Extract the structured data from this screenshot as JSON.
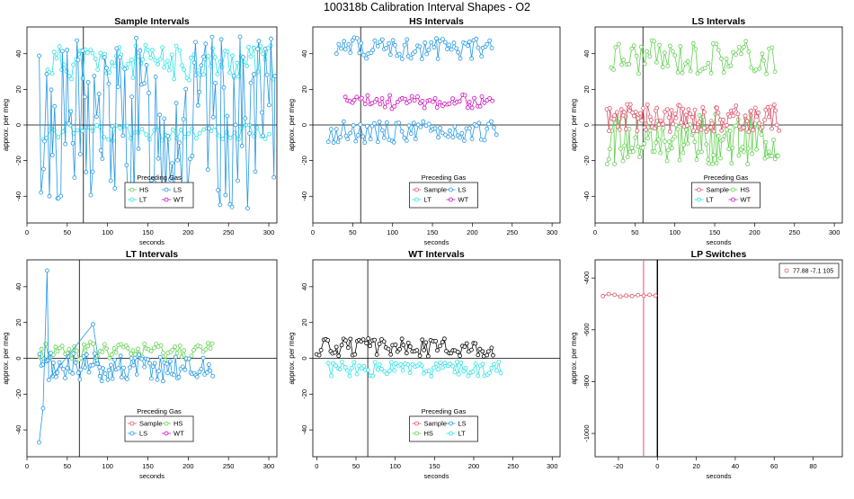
{
  "title": "100318b   Calibration Interval Shapes - O2",
  "colors": {
    "Sample": "#df536b",
    "HS": "#61d04f",
    "LS": "#2297e6",
    "LT": "#28e2e5",
    "WT": "#cd0bbc",
    "Black": "#000000"
  },
  "chart_data": [
    {
      "type": "scatter",
      "title": "Sample Intervals",
      "xlabel": "seconds",
      "ylabel": "approx. per meg",
      "xlim": [
        0,
        310
      ],
      "ylim": [
        -55,
        55
      ],
      "xticks": [
        0,
        50,
        100,
        150,
        200,
        250,
        300
      ],
      "yticks": [
        -40,
        -20,
        0,
        20,
        40
      ],
      "vline": 70,
      "hline": 0,
      "legend": {
        "title": "Preceding Gas",
        "position": "bottom-center",
        "entries": [
          "HS",
          "LS",
          "LT",
          "WT"
        ],
        "entry_colors": [
          "HS",
          "LS",
          "LT",
          "WT"
        ],
        "ncol": 2
      },
      "series": [
        {
          "name": "LT",
          "color": "LT",
          "pattern": "high_band",
          "xrange": [
            25,
            305
          ],
          "level": 35,
          "amp": 10,
          "n": 95,
          "seed": 11
        },
        {
          "name": "LT",
          "color": "LT",
          "pattern": "low_band",
          "xrange": [
            20,
            300
          ],
          "level": -4,
          "amp": 5,
          "n": 60,
          "seed": 12
        },
        {
          "name": "LS",
          "color": "LS",
          "pattern": "wild",
          "xrange": [
            15,
            308
          ],
          "level": 0,
          "amp": 50,
          "n": 120,
          "seed": 13
        }
      ]
    },
    {
      "type": "scatter",
      "title": "HS Intervals",
      "xlabel": "seconds",
      "ylabel": "approx. per meg",
      "xlim": [
        0,
        310
      ],
      "ylim": [
        -55,
        55
      ],
      "xticks": [
        0,
        50,
        100,
        150,
        200,
        250,
        300
      ],
      "yticks": [
        -40,
        -20,
        0,
        20,
        40
      ],
      "vline": 60,
      "hline": 0,
      "legend": {
        "title": "Preceding Gas",
        "position": "bottom-center",
        "entries": [
          "Sample",
          "LS",
          "LT",
          "WT"
        ],
        "entry_colors": [
          "Sample",
          "LS",
          "LT",
          "WT"
        ],
        "ncol": 2
      },
      "series": [
        {
          "name": "LS",
          "color": "LS",
          "pattern": "high_band",
          "xrange": [
            30,
            225
          ],
          "level": 43,
          "amp": 6,
          "n": 70,
          "seed": 21
        },
        {
          "name": "LS",
          "color": "LS",
          "pattern": "low_band",
          "xrange": [
            20,
            230
          ],
          "level": -4,
          "amp": 6,
          "n": 70,
          "seed": 22
        },
        {
          "name": "WT",
          "color": "WT",
          "pattern": "band",
          "xrange": [
            40,
            225
          ],
          "level": 13,
          "amp": 4,
          "n": 60,
          "seed": 23
        }
      ]
    },
    {
      "type": "scatter",
      "title": "LS Intervals",
      "xlabel": "seconds",
      "ylabel": "approx. per meg",
      "xlim": [
        0,
        310
      ],
      "ylim": [
        -55,
        55
      ],
      "xticks": [
        0,
        50,
        100,
        150,
        200,
        250,
        300
      ],
      "yticks": [
        -40,
        -20,
        0,
        20,
        40
      ],
      "vline": 60,
      "hline": 0,
      "legend": {
        "title": "Preceding Gas",
        "position": "bottom-center",
        "entries": [
          "Sample",
          "HS",
          "LT",
          "WT"
        ],
        "entry_colors": [
          "Sample",
          "HS",
          "LT",
          "WT"
        ],
        "ncol": 2
      },
      "series": [
        {
          "name": "HS",
          "color": "HS",
          "pattern": "high_band",
          "xrange": [
            20,
            225
          ],
          "level": 38,
          "amp": 10,
          "n": 65,
          "seed": 31
        },
        {
          "name": "HS",
          "color": "HS",
          "pattern": "noisy",
          "xrange": [
            15,
            230
          ],
          "level": -8,
          "amp": 14,
          "n": 110,
          "seed": 32
        },
        {
          "name": "Sample",
          "color": "Sample",
          "pattern": "noisy",
          "xrange": [
            15,
            230
          ],
          "level": 4,
          "amp": 8,
          "n": 110,
          "seed": 33
        }
      ]
    },
    {
      "type": "scatter",
      "title": "LT Intervals",
      "xlabel": "seconds",
      "ylabel": "approx. per meg",
      "xlim": [
        0,
        310
      ],
      "ylim": [
        -55,
        55
      ],
      "xticks": [
        0,
        50,
        100,
        150,
        200,
        250,
        300
      ],
      "yticks": [
        -40,
        -20,
        0,
        20,
        40
      ],
      "vline": 65,
      "hline": 0,
      "legend": {
        "title": "Preceding Gas",
        "position": "bottom-center",
        "entries": [
          "Sample",
          "HS",
          "LS",
          "WT"
        ],
        "entry_colors": [
          "Sample",
          "HS",
          "LS",
          "WT"
        ],
        "ncol": 2
      },
      "series": [
        {
          "name": "HS",
          "color": "HS",
          "pattern": "noisy",
          "xrange": [
            15,
            230
          ],
          "level": 4,
          "amp": 5,
          "n": 75,
          "seed": 41
        },
        {
          "name": "LS",
          "color": "LS",
          "pattern": "noisy",
          "xrange": [
            15,
            230
          ],
          "level": -5,
          "amp": 8,
          "n": 95,
          "seed": 42
        },
        {
          "name": "LS",
          "color": "LS",
          "pattern": "points",
          "points": [
            [
              15,
              -47
            ],
            [
              20,
              -28
            ],
            [
              25,
              49
            ],
            [
              27,
              -12
            ],
            [
              82,
              19
            ],
            [
              90,
              -5
            ]
          ],
          "seed": 43
        }
      ]
    },
    {
      "type": "scatter",
      "title": "WT Intervals",
      "xlabel": "seconds",
      "ylabel": "approx. per meg",
      "xlim": [
        -5,
        310
      ],
      "ylim": [
        -55,
        55
      ],
      "xticks": [
        0,
        50,
        100,
        150,
        200,
        250,
        300
      ],
      "yticks": [
        -40,
        -20,
        0,
        20,
        40
      ],
      "vline": 65,
      "hline": 0,
      "legend": {
        "title": "Preceding Gas",
        "position": "bottom-center",
        "entries": [
          "Sample",
          "LS",
          "HS",
          "LT"
        ],
        "entry_colors": [
          "Sample",
          "LS",
          "HS",
          "LT"
        ],
        "ncol": 2
      },
      "series": [
        {
          "name": "Sample",
          "color": "Black",
          "pattern": "band",
          "xrange": [
            0,
            225
          ],
          "level": 6,
          "amp": 5,
          "n": 80,
          "seed": 51
        },
        {
          "name": "LT",
          "color": "LT",
          "pattern": "band",
          "xrange": [
            15,
            235
          ],
          "level": -6,
          "amp": 4,
          "n": 75,
          "seed": 52
        }
      ]
    },
    {
      "type": "scatter",
      "title": "LP Switches",
      "xlabel": "seconds",
      "ylabel": "approx. per meg",
      "xlim": [
        -32,
        95
      ],
      "ylim": [
        -1090,
        -330
      ],
      "xticks": [
        -20,
        0,
        20,
        40,
        60,
        80
      ],
      "yticks": [
        -1000,
        -800,
        -600,
        -400
      ],
      "vline": 0,
      "vline2": -7.1,
      "hline": null,
      "legend": {
        "title": "",
        "position": "top-right",
        "entries": [
          "77.88 -7.1 105"
        ],
        "entry_colors": [
          "Sample"
        ],
        "ncol": 1
      },
      "series": [
        {
          "name": "77.88 -7.1 105",
          "color": "Sample",
          "pattern": "points",
          "points": [
            [
              -28,
              -470
            ],
            [
              -25,
              -462
            ],
            [
              -22,
              -465
            ],
            [
              -19,
              -472
            ],
            [
              -16,
              -468
            ],
            [
              -13,
              -470
            ],
            [
              -10,
              -466
            ],
            [
              -7,
              -468
            ],
            [
              -4,
              -465
            ],
            [
              -1,
              -468
            ]
          ],
          "seed": 61
        }
      ]
    }
  ]
}
